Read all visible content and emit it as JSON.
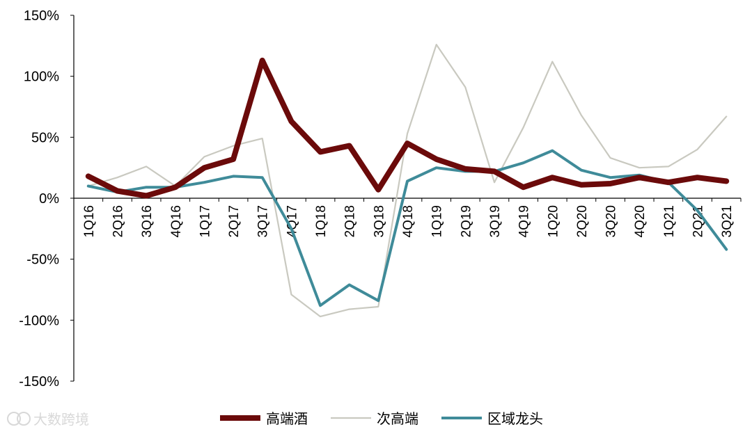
{
  "chart_data": {
    "type": "line",
    "title": "",
    "xlabel": "",
    "ylabel": "",
    "ylim": [
      -150,
      150
    ],
    "y_ticks": [
      150,
      100,
      50,
      0,
      -50,
      -100,
      -150
    ],
    "y_tick_labels": [
      "150%",
      "100%",
      "50%",
      "0%",
      "-50%",
      "-100%",
      "-150%"
    ],
    "categories": [
      "1Q16",
      "2Q16",
      "3Q16",
      "4Q16",
      "1Q17",
      "2Q17",
      "3Q17",
      "4Q17",
      "1Q18",
      "2Q18",
      "3Q18",
      "4Q18",
      "1Q19",
      "2Q19",
      "3Q19",
      "4Q19",
      "1Q20",
      "2Q20",
      "3Q20",
      "4Q20",
      "1Q21",
      "2Q21",
      "3Q21"
    ],
    "grid": false,
    "legend_position": "bottom",
    "series": [
      {
        "name": "高端酒",
        "color": "#6b0a0a",
        "values": [
          18,
          6,
          2,
          9,
          25,
          32,
          113,
          63,
          38,
          43,
          7,
          45,
          32,
          24,
          22,
          9,
          17,
          11,
          12,
          17,
          13,
          17,
          14
        ]
      },
      {
        "name": "次高端",
        "color": "#c9c9c0",
        "values": [
          10,
          17,
          26,
          10,
          34,
          43,
          49,
          -79,
          -97,
          -91,
          -89,
          53,
          126,
          91,
          13,
          58,
          112,
          68,
          33,
          25,
          26,
          40,
          67
        ]
      },
      {
        "name": "区域龙头",
        "color": "#3f8b99",
        "values": [
          10,
          5,
          9,
          9,
          13,
          18,
          17,
          -25,
          -88,
          -71,
          -84,
          14,
          25,
          22,
          22,
          29,
          39,
          23,
          17,
          19,
          13,
          -10,
          -42
        ]
      }
    ]
  },
  "watermark": {
    "text": "大数跨境",
    "icon": "watermark-logo-icon"
  }
}
